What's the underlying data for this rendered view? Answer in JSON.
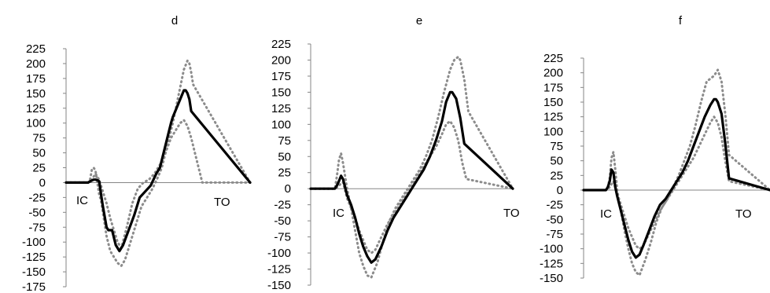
{
  "chart_data": [
    {
      "type": "line",
      "title": "d",
      "ylim": [
        -175,
        225
      ],
      "yticks": [
        "225",
        "200",
        "175",
        "150",
        "125",
        "100",
        "75",
        "50",
        "25",
        "0",
        "-25",
        "-50",
        "-75",
        "-100",
        "-125",
        "-150",
        "-175"
      ],
      "annotations": [
        "IC",
        "TO"
      ],
      "series": [
        {
          "style": "solid",
          "x": [
            0,
            10,
            12,
            13,
            15,
            16,
            17,
            18,
            19,
            20,
            22,
            23,
            25,
            27,
            29,
            31,
            34,
            37,
            40,
            43,
            46,
            49,
            51,
            53,
            55,
            57,
            58,
            60,
            62,
            64,
            65,
            66,
            67,
            68,
            100
          ],
          "y": [
            0,
            0,
            0,
            2,
            5,
            5,
            4,
            2,
            -20,
            -40,
            -75,
            -80,
            -80,
            -105,
            -115,
            -105,
            -80,
            -55,
            -25,
            -15,
            -5,
            15,
            25,
            50,
            75,
            100,
            110,
            125,
            140,
            155,
            155,
            150,
            140,
            120,
            0
          ]
        },
        {
          "style": "dotted",
          "x": [
            0,
            10,
            12,
            13,
            14,
            15,
            16,
            17,
            18,
            19,
            20,
            22,
            24,
            26,
            28,
            30,
            32,
            35,
            38,
            41,
            44,
            47,
            50,
            52,
            54,
            56,
            58,
            60,
            62,
            64,
            66,
            67,
            68,
            69,
            100
          ],
          "y": [
            0,
            0,
            0,
            4,
            22,
            25,
            20,
            0,
            -20,
            -30,
            -50,
            -90,
            -115,
            -125,
            -135,
            -140,
            -130,
            -100,
            -70,
            -40,
            -25,
            -10,
            10,
            25,
            50,
            75,
            100,
            130,
            160,
            190,
            205,
            200,
            185,
            165,
            0
          ]
        },
        {
          "style": "dotted",
          "x": [
            0,
            10,
            12,
            13,
            14,
            15,
            16,
            18,
            20,
            22,
            24,
            26,
            28,
            30,
            33,
            36,
            39,
            42,
            45,
            48,
            51,
            54,
            57,
            60,
            62,
            64,
            66,
            68,
            70,
            72,
            74,
            100
          ],
          "y": [
            0,
            0,
            0,
            2,
            5,
            10,
            15,
            5,
            -15,
            -35,
            -60,
            -80,
            -100,
            -110,
            -75,
            -35,
            -10,
            0,
            5,
            15,
            30,
            50,
            75,
            90,
            100,
            105,
            95,
            75,
            50,
            25,
            0,
            0
          ]
        }
      ]
    },
    {
      "type": "line",
      "title": "e",
      "ylim": [
        -150,
        225
      ],
      "yticks": [
        "225",
        "200",
        "175",
        "150",
        "125",
        "100",
        "75",
        "50",
        "25",
        "0",
        "-25",
        "-50",
        "-75",
        "-100",
        "-125",
        "-150"
      ],
      "annotations": [
        "IC",
        "TO"
      ],
      "series": [
        {
          "style": "solid",
          "x": [
            0,
            10,
            12,
            13,
            14,
            15,
            16,
            18,
            20,
            22,
            24,
            26,
            28,
            30,
            32,
            35,
            38,
            41,
            44,
            47,
            50,
            53,
            56,
            59,
            62,
            65,
            67,
            69,
            70,
            72,
            74,
            76,
            100
          ],
          "y": [
            0,
            0,
            0,
            5,
            12,
            20,
            15,
            -10,
            -25,
            -45,
            -70,
            -90,
            -105,
            -115,
            -110,
            -90,
            -65,
            -45,
            -30,
            -15,
            0,
            15,
            30,
            50,
            75,
            105,
            135,
            150,
            150,
            140,
            110,
            70,
            0
          ]
        },
        {
          "style": "dotted",
          "x": [
            0,
            10,
            12,
            13,
            14,
            15,
            16,
            18,
            20,
            22,
            24,
            26,
            28,
            30,
            33,
            36,
            39,
            42,
            45,
            48,
            51,
            54,
            57,
            60,
            63,
            66,
            69,
            71,
            73,
            74,
            76,
            78,
            100
          ],
          "y": [
            0,
            0,
            0,
            20,
            45,
            55,
            40,
            0,
            -30,
            -65,
            -100,
            -120,
            -135,
            -138,
            -115,
            -80,
            -50,
            -30,
            -15,
            0,
            15,
            30,
            50,
            75,
            110,
            150,
            185,
            200,
            205,
            200,
            170,
            120,
            0
          ]
        },
        {
          "style": "dotted",
          "x": [
            0,
            10,
            12,
            13,
            14,
            15,
            16,
            18,
            20,
            22,
            24,
            26,
            28,
            30,
            32,
            35,
            38,
            41,
            44,
            47,
            50,
            53,
            56,
            59,
            62,
            65,
            67,
            69,
            71,
            73,
            75,
            77,
            100
          ],
          "y": [
            0,
            0,
            0,
            2,
            5,
            8,
            10,
            -15,
            -30,
            -45,
            -65,
            -80,
            -95,
            -100,
            -95,
            -75,
            -55,
            -40,
            -25,
            -10,
            5,
            20,
            35,
            50,
            65,
            85,
            100,
            105,
            95,
            75,
            40,
            15,
            0
          ]
        }
      ]
    },
    {
      "type": "line",
      "title": "f",
      "ylim": [
        -150,
        225
      ],
      "yticks": [
        "225",
        "200",
        "175",
        "150",
        "125",
        "100",
        "75",
        "50",
        "25",
        "0",
        "-25",
        "-50",
        "-75",
        "-100",
        "-125",
        "-150"
      ],
      "annotations": [
        "IC",
        "TO"
      ],
      "series": [
        {
          "style": "solid",
          "x": [
            0,
            10,
            12,
            13,
            14,
            15,
            16,
            17,
            18,
            20,
            22,
            24,
            26,
            28,
            30,
            32,
            35,
            38,
            41,
            44,
            47,
            50,
            53,
            56,
            59,
            62,
            65,
            68,
            70,
            71,
            72,
            74,
            76,
            78,
            100
          ],
          "y": [
            0,
            0,
            0,
            5,
            15,
            35,
            30,
            5,
            -10,
            -35,
            -60,
            -85,
            -105,
            -115,
            -110,
            -95,
            -70,
            -45,
            -25,
            -15,
            0,
            15,
            30,
            50,
            75,
            100,
            125,
            145,
            155,
            155,
            150,
            130,
            80,
            20,
            0
          ]
        },
        {
          "style": "dotted",
          "x": [
            0,
            10,
            12,
            13,
            14,
            15,
            16,
            17,
            18,
            20,
            22,
            24,
            26,
            28,
            30,
            33,
            36,
            39,
            42,
            45,
            48,
            51,
            54,
            57,
            60,
            63,
            66,
            68,
            70,
            72,
            74,
            76,
            78,
            100
          ],
          "y": [
            0,
            0,
            0,
            5,
            20,
            55,
            65,
            35,
            0,
            -35,
            -70,
            -100,
            -125,
            -140,
            -145,
            -120,
            -90,
            -55,
            -30,
            -15,
            5,
            25,
            50,
            75,
            110,
            150,
            185,
            190,
            195,
            205,
            185,
            130,
            60,
            0
          ]
        },
        {
          "style": "dotted",
          "x": [
            0,
            10,
            12,
            13,
            14,
            15,
            16,
            18,
            20,
            22,
            24,
            26,
            28,
            30,
            32,
            35,
            38,
            41,
            44,
            47,
            50,
            53,
            56,
            59,
            62,
            65,
            68,
            70,
            72,
            74,
            76,
            78,
            100
          ],
          "y": [
            0,
            0,
            0,
            2,
            5,
            10,
            15,
            -5,
            -25,
            -45,
            -65,
            -80,
            -95,
            -100,
            -95,
            -75,
            -55,
            -35,
            -20,
            -5,
            10,
            25,
            40,
            55,
            75,
            95,
            115,
            125,
            115,
            90,
            50,
            15,
            0
          ]
        }
      ]
    }
  ]
}
